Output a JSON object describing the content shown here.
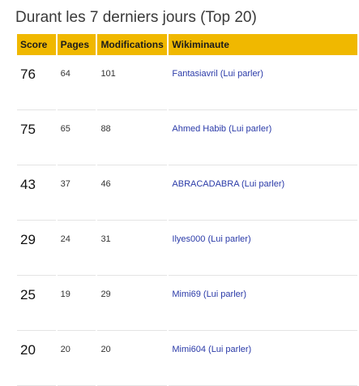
{
  "title": "Durant les 7 derniers jours (Top 20)",
  "columns": [
    "Score",
    "Pages",
    "Modifications",
    "Wikiminaute"
  ],
  "rows": [
    {
      "score": "76",
      "pages": "64",
      "edits": "101",
      "user": "Fantasiavril",
      "talk": "(Lui parler)"
    },
    {
      "score": "75",
      "pages": "65",
      "edits": "88",
      "user": "Ahmed Habib",
      "talk": "(Lui parler)"
    },
    {
      "score": "43",
      "pages": "37",
      "edits": "46",
      "user": "ABRACADABRA",
      "talk": "(Lui parler)"
    },
    {
      "score": "29",
      "pages": "24",
      "edits": "31",
      "user": "Ilyes000",
      "talk": "(Lui parler)"
    },
    {
      "score": "25",
      "pages": "19",
      "edits": "29",
      "user": "Mimi69",
      "talk": "(Lui parler)"
    },
    {
      "score": "20",
      "pages": "20",
      "edits": "20",
      "user": "Mimi604",
      "talk": "(Lui parler)"
    }
  ],
  "colors": {
    "header_bg": "#f0b800",
    "link": "#2a3aa8"
  }
}
